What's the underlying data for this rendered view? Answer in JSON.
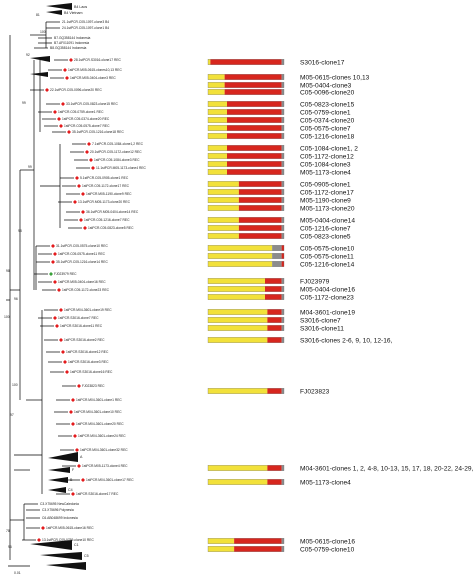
{
  "colors": {
    "recombinant_marker": "#e41a1c",
    "reference_marker": "#3aa13a",
    "segment_gray": "#8c8c8c",
    "segment_yellow": "#f2e13a",
    "segment_red": "#d7261e",
    "branch": "#000000"
  },
  "scale_bar": "0.01",
  "clade_labels": [
    "B4 Laos",
    "B4 Vietnam",
    "A",
    "F",
    "B",
    "C4",
    "C1",
    "C5"
  ],
  "bootstrap_values": [
    "100",
    "81",
    "92",
    "99",
    "99",
    "98",
    "98",
    "96",
    "100",
    "100",
    "97",
    "78",
    "96"
  ],
  "tree_leaves": [
    "21.1stPCR.C05-1097-clone3 B4",
    "24.1stPCR.C05-1097-clone1 B4",
    "B7.GQ358144 Indonesia",
    "B7.AF011091 Indonesia",
    "B8.GQ358144 Indonesia",
    "28.1stPCR.S3016-clone17 REC",
    "1stPCR.M05-0615-clones10,13 REC",
    "1stPCR.M05-0404-clone3 REC",
    "22.1stPCR.C05-0096-clone20 REC",
    "33.1stPCR.C05-0823-clone15 REC",
    "1stPCR.C05-0759-clone1 REC",
    "1stPCR.C05-0374-clone20 REC",
    "1stPCR.C05-0575-clone7 REC",
    "35.1stPCR.C05-1216-clone18 REC",
    "7.1stPCR.C05-1084-clone1,2 REC",
    "20.1stPCR.C05-1172-clone12 REC",
    "1stPCR.C05-1084-clone3 REC",
    "11.1stPCR.M05-1173-clone4 REC",
    "5.1stPCR.C05-0905-clone1 REC",
    "1stPCR.C05-1172-clone17 REC",
    "1stPCR.M05-1190-clone9 REC",
    "13.1stPCR.M05-1173-clone20 REC",
    "36.1stPCR.M05-0404-clone14 REC",
    "1stPCR.C05-1216-clone7 REC",
    "1stPCR.C05-0823-clone5 REC",
    "31.1stPCR.C05-0575-clone10 REC",
    "1stPCR.C05-0575-clone11 REC",
    "35.1stPCR.C05-1216-clone14 REC",
    "FJ023979 REC",
    "1stPCR.M05-0404-clone16 REC",
    "1stPCR.C05-1172-clone23 REC",
    "1stPCR.M04-3601-clone19 REC",
    "1stPCR.S3016-clone7 REC",
    "1stPCR.S3016-clone11 REC",
    "1stPCR.S3016-clone2 REC",
    "1stPCR.S3016-clone12 REC",
    "1stPCR.S3016-clone3 REC",
    "1stPCR.S3016-clone16 REC",
    "FJ023823 REC",
    "1stPCR.M04-3601-clone1 REC",
    "1stPCR.M04-3601-clone10 REC",
    "1stPCR.M04-3601-clone20 REC",
    "1stPCR.M04-3601-clone24 REC",
    "1stPCR.M04-3601-clone32 REC",
    "1stPCR.M05-1173-clone4 REC",
    "1stPCR.M04-3601-clone17 REC",
    "1stPCR.S3016-clone17 REC",
    "C3.X75695 NewCaledonia",
    "C3.X75696 Polynesia",
    "C6.AB048699 Indonesia",
    "1stPCR.M05-0615-clone16 REC",
    "13.1stPCR.C05-0759-clone10 REC"
  ],
  "panels": [
    {
      "label": "S3016-clone17",
      "bar": [
        "y",
        1,
        "r",
        30,
        "g",
        1
      ]
    },
    {
      "label": "M05-0615-clones 10,13",
      "bar": [
        "y",
        7,
        "r",
        24,
        "g",
        1
      ]
    },
    {
      "label": "M05-0404-clone3",
      "bar": [
        "y",
        7,
        "r",
        24,
        "g",
        1
      ]
    },
    {
      "label": "C05-0096-clone20",
      "bar": [
        "y",
        7,
        "r",
        24,
        "g",
        1
      ]
    },
    {
      "label": "C05-0823-clone15",
      "bar": [
        "y",
        8,
        "r",
        23,
        "g",
        1
      ]
    },
    {
      "label": "C05-0759-clone1",
      "bar": [
        "y",
        8,
        "r",
        23,
        "g",
        1
      ]
    },
    {
      "label": "C05-0374-clone20",
      "bar": [
        "y",
        8,
        "r",
        23,
        "g",
        1
      ]
    },
    {
      "label": "C05-0575-clone7",
      "bar": [
        "y",
        8,
        "r",
        23,
        "g",
        1
      ]
    },
    {
      "label": "C05-1216-clone18",
      "bar": [
        "y",
        8,
        "r",
        23,
        "g",
        1
      ]
    },
    {
      "label": "C05-1084-clone1, 2",
      "bar": [
        "y",
        8,
        "r",
        23,
        "g",
        1
      ]
    },
    {
      "label": "C05-1172-clone12",
      "bar": [
        "y",
        8,
        "r",
        23,
        "g",
        1
      ]
    },
    {
      "label": "C05-1084-clone3",
      "bar": [
        "y",
        8,
        "r",
        23,
        "g",
        1
      ]
    },
    {
      "label": "M05-1173-clone4",
      "bar": [
        "y",
        8,
        "r",
        23,
        "g",
        1
      ]
    },
    {
      "label": "C05-0905-clone1",
      "bar": [
        "y",
        13,
        "r",
        18,
        "g",
        1
      ]
    },
    {
      "label": "C05-1172-clone17",
      "bar": [
        "y",
        13,
        "r",
        18,
        "g",
        1
      ]
    },
    {
      "label": "M05-1190-clone9",
      "bar": [
        "y",
        13,
        "r",
        18,
        "g",
        1
      ]
    },
    {
      "label": "M05-1173-clone20",
      "bar": [
        "y",
        13,
        "r",
        18,
        "g",
        1
      ]
    },
    {
      "label": "M05-0404-clone14",
      "bar": [
        "y",
        13,
        "r",
        18,
        "g",
        1
      ]
    },
    {
      "label": "C05-1216-clone7",
      "bar": [
        "y",
        13,
        "r",
        18,
        "g",
        1
      ]
    },
    {
      "label": "C05-0823-clone5",
      "bar": [
        "y",
        13,
        "r",
        18,
        "g",
        1
      ]
    },
    {
      "label": "C05-0575-clone10",
      "bar": [
        "y",
        27,
        "g",
        4,
        "r",
        1
      ]
    },
    {
      "label": "C05-0575-clone11",
      "bar": [
        "y",
        27,
        "g",
        4,
        "r",
        1
      ]
    },
    {
      "label": "C05-1216-clone14",
      "bar": [
        "y",
        27,
        "g",
        4,
        "r",
        1
      ]
    },
    {
      "label": "FJ023979",
      "bar": [
        "y",
        24,
        "r",
        7,
        "g",
        1
      ]
    },
    {
      "label": "M05-0404-clone16",
      "bar": [
        "y",
        24,
        "r",
        7,
        "g",
        1
      ]
    },
    {
      "label": "C05-1172-clone23",
      "bar": [
        "y",
        24,
        "r",
        7,
        "g",
        1
      ]
    },
    {
      "label": "M04-3601-clone19",
      "bar": [
        "y",
        25,
        "r",
        6,
        "g",
        1
      ]
    },
    {
      "label": "S3016-clone7",
      "bar": [
        "y",
        25,
        "r",
        6,
        "g",
        1
      ]
    },
    {
      "label": "S3016-clone11",
      "bar": [
        "y",
        25,
        "r",
        6,
        "g",
        1
      ]
    },
    {
      "label": "S3016-clones 2-6, 9, 10, 12-16,",
      "bar": [
        "y",
        25,
        "r",
        6,
        "g",
        1
      ]
    },
    {
      "label": "FJ023823",
      "bar": [
        "y",
        25,
        "r",
        6,
        "g",
        1
      ]
    },
    {
      "label": "M04-3601-clones 1, 2, 4-8, 10-13, 15, 17, 18, 20-22, 24-29, 32-34",
      "bar": [
        "y",
        25,
        "r",
        6,
        "g",
        1
      ]
    },
    {
      "label": "M05-1173-clone4",
      "bar": [
        "y",
        25,
        "r",
        6,
        "g",
        1
      ]
    },
    {
      "label": "M05-0615-clone16",
      "bar": [
        "y",
        11,
        "r",
        20,
        "g",
        1
      ]
    },
    {
      "label": "C05-0759-clone10",
      "bar": [
        "y",
        11,
        "r",
        20,
        "g",
        1
      ]
    }
  ]
}
